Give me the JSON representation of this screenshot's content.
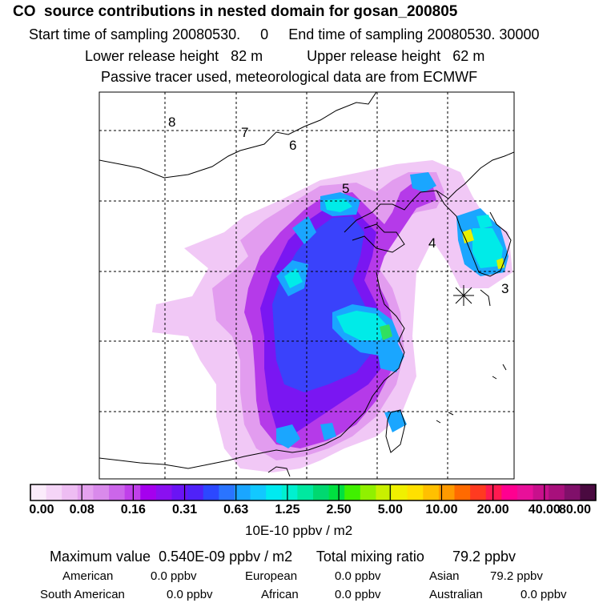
{
  "header": {
    "title": "CO  source contributions in nested domain for gosan_200805",
    "start_label": "Start time of sampling",
    "start_value": "20080530.     0",
    "end_label": "End time of sampling",
    "end_value": "20080530. 30000",
    "lower_label": "Lower release height",
    "lower_value": "82 m",
    "upper_label": "Upper release height",
    "upper_value": "62 m",
    "note": "Passive tracer used, meteorological data are from ECMWF"
  },
  "map": {
    "receptor_numbers": [
      "8",
      "7",
      "6",
      "5",
      "4",
      "3"
    ],
    "receptor_marker": "asterisk-receptor-icon"
  },
  "colorbar": {
    "labels": [
      "0.00",
      "0.08",
      "0.16",
      "0.31",
      "0.63",
      "1.25",
      "2.50",
      "5.00",
      "10.00",
      "20.00",
      "40.00",
      "80.00"
    ],
    "colors": [
      "#fbecfb",
      "#f5d5f7",
      "#eebdf3",
      "#e5a2ef",
      "#d98aeb",
      "#cc66ea",
      "#c040ea",
      "#a500ee",
      "#8a10f0",
      "#6a14f4",
      "#4f22f8",
      "#2c48ff",
      "#2a74ff",
      "#1aa6ff",
      "#12c8ff",
      "#00eaf0",
      "#00f0d0",
      "#00e8a0",
      "#00d870",
      "#00e040",
      "#40f000",
      "#90f000",
      "#c8f000",
      "#f0f000",
      "#ffe000",
      "#ffc000",
      "#ff9a00",
      "#ff6a00",
      "#ff3a20",
      "#ff1a50",
      "#ff0090",
      "#e8109a",
      "#c8108c",
      "#a8107c",
      "#80106a",
      "#4a0a40"
    ],
    "unit": "10E-10 ppbv / m2"
  },
  "summary": {
    "max_label": "Maximum value",
    "max_value": "0.540E-09 ppbv / m2",
    "total_label": "Total mixing ratio",
    "total_value": "79.2 ppbv",
    "regions": [
      {
        "name": "American",
        "value": "0.0 ppbv"
      },
      {
        "name": "European",
        "value": "0.0 ppbv"
      },
      {
        "name": "Asian",
        "value": "79.2 ppbv"
      },
      {
        "name": "South American",
        "value": "0.0 ppbv"
      },
      {
        "name": "African",
        "value": "0.0 ppbv"
      },
      {
        "name": "Australian",
        "value": "0.0 ppbv"
      }
    ]
  }
}
